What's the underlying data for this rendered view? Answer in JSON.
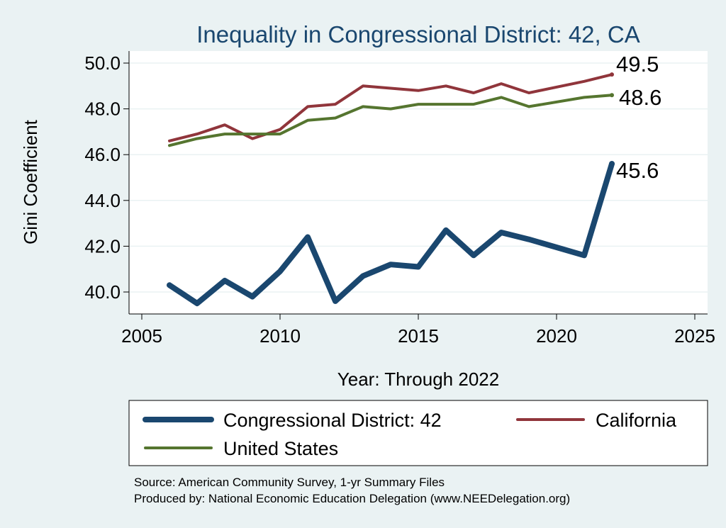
{
  "chart_data": {
    "type": "line",
    "title": "Inequality in Congressional District:  42, CA",
    "xlabel": "Year: Through 2022",
    "ylabel": "Gini Coefficient",
    "xlim": [
      2005,
      2025
    ],
    "ylim": [
      39.0,
      50.6
    ],
    "xticks": [
      2005,
      2010,
      2015,
      2020,
      2025
    ],
    "yticks": [
      40.0,
      42.0,
      44.0,
      46.0,
      48.0,
      50.0
    ],
    "grid": true,
    "legend_position": "bottom",
    "series": [
      {
        "name": "Congressional District:  42",
        "color": "#1a476f",
        "x": [
          2006,
          2007,
          2008,
          2009,
          2010,
          2011,
          2012,
          2013,
          2014,
          2015,
          2016,
          2017,
          2018,
          2019,
          2021,
          2022
        ],
        "values": [
          40.3,
          39.5,
          40.5,
          39.8,
          40.9,
          42.4,
          39.6,
          40.7,
          41.2,
          41.1,
          42.7,
          41.6,
          42.6,
          42.3,
          41.6,
          45.6
        ],
        "end_label": "45.6"
      },
      {
        "name": "California",
        "color": "#90353b",
        "x": [
          2006,
          2007,
          2008,
          2009,
          2010,
          2011,
          2012,
          2013,
          2014,
          2015,
          2016,
          2017,
          2018,
          2019,
          2021,
          2022
        ],
        "values": [
          46.6,
          46.9,
          47.3,
          46.7,
          47.1,
          48.1,
          48.2,
          49.0,
          48.9,
          48.8,
          49.0,
          48.7,
          49.1,
          48.7,
          49.2,
          49.5
        ],
        "end_label": "49.5"
      },
      {
        "name": "United States",
        "color": "#55752f",
        "x": [
          2006,
          2007,
          2008,
          2009,
          2010,
          2011,
          2012,
          2013,
          2014,
          2015,
          2016,
          2017,
          2018,
          2019,
          2021,
          2022
        ],
        "values": [
          46.4,
          46.7,
          46.9,
          46.9,
          46.9,
          47.5,
          47.6,
          48.1,
          48.0,
          48.2,
          48.2,
          48.2,
          48.5,
          48.1,
          48.5,
          48.6
        ],
        "end_label": "48.6"
      }
    ]
  },
  "source_line": "Source: American Community Survey, 1-yr Summary Files",
  "produced_line": "Produced by: National Economic Education Delegation (www.NEEDelegation.org)"
}
